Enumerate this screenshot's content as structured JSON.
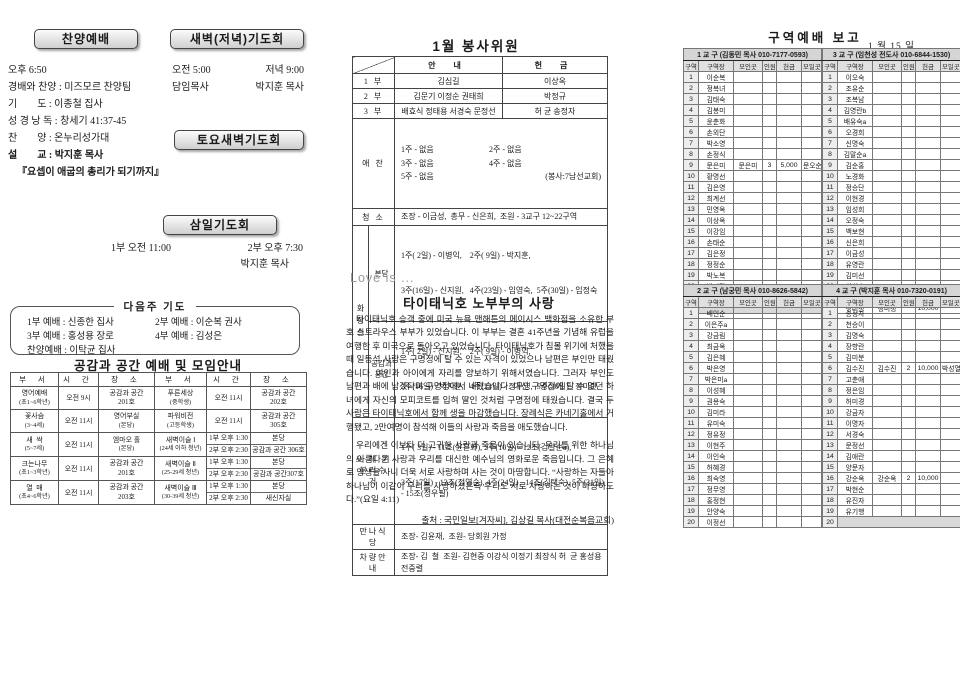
{
  "left": {
    "praise_worship": {
      "title": "찬양예배",
      "time": "오후 6:50",
      "lines": [
        "경배와 찬양 : 미즈모르 찬양팀",
        "기        도 : 이종철 집사",
        "성 경 낭 독 : 창세기 41:37-45",
        "찬        양 : 온누리성가대"
      ],
      "sermon_line": "설        교 : 박지훈 목사",
      "sermon_title": "『요셉이 애굽의 총리가 되기까지』"
    },
    "dawn_prayer": {
      "title": "새벽(저녁)기도회",
      "time_am": "오전 5:00",
      "time_pm": "저녁 9:00",
      "leader_am": "담임목사",
      "leader_pm": "박지훈 목사"
    },
    "saturday_dawn": {
      "title": "토요새벽기도회"
    },
    "wednesday_prayer": {
      "title": "삼일기도회",
      "part1": "1부 오전 11:00",
      "part2": "2부 오후 7:30",
      "preacher": "박지훈 목사"
    },
    "next_week_prayer": {
      "title": "다음주 기도",
      "items": [
        "1부 예배 : 신종한 집사",
        "2부 예배 : 이순복 권사",
        "3부 예배 : 홍성용 장로",
        "4부 예배 : 김성은",
        "찬양예배 : 이탁균 집사"
      ]
    },
    "meeting_table": {
      "title": "공감과 공간 예배 및 모임안내",
      "headers": [
        "부  서",
        "시  간",
        "장  소",
        "부  서",
        "시  간",
        "장  소"
      ],
      "rows": [
        {
          "l": [
            "영어예배",
            "(초1~6학년)"
          ],
          "lt": "오전 9시",
          "lp": [
            "공감과 공간",
            "201호"
          ],
          "r": [
            "푸른세상",
            "(중학생)"
          ],
          "split": false,
          "rt": "오전 11시",
          "rp": [
            "공감과 공간",
            "202호"
          ]
        },
        {
          "l": [
            "꽃사슴",
            "(3~4세)"
          ],
          "lt": "오전 11시",
          "lp": [
            "영어부실",
            "(본당)"
          ],
          "r": [
            "파워비전",
            "(고등학생)"
          ],
          "split": false,
          "rt": "오전 11시",
          "rp": [
            "공감과 공간",
            "305호"
          ]
        },
        {
          "l": [
            "새  싹",
            "(5~7세)"
          ],
          "lt": "오전 11시",
          "lp": [
            "엠마오 홀",
            "(본당)"
          ],
          "r": [
            "새벽이슬 Ⅰ",
            "(24세 이하 청년)"
          ],
          "split": true,
          "sub": [
            [
              "1부 오후 1:30",
              "본당"
            ],
            [
              "2부 오후 2:30",
              "공감과 공간 306호"
            ]
          ]
        },
        {
          "l": [
            "크는나무",
            "(초1~3학년)"
          ],
          "lt": "오전 11시",
          "lp": [
            "공감과 공간",
            "201호"
          ],
          "r": [
            "새벽이슬 Ⅱ",
            "(25-29세 청년)"
          ],
          "split": true,
          "sub": [
            [
              "1부 오후 1:30",
              "본당"
            ],
            [
              "2부 오후 2:30",
              "공감과 공간307호"
            ]
          ]
        },
        {
          "l": [
            "열  매",
            "(초4~6학년)"
          ],
          "lt": "오전 11시",
          "lp": [
            "공감과 공간",
            "203호"
          ],
          "r": [
            "새벽이슬 Ⅲ",
            "(30-39세 청년)"
          ],
          "split": true,
          "sub": [
            [
              "1부 오후 1:30",
              "본당"
            ],
            [
              "2부 오후 2:30",
              "새신자실"
            ]
          ]
        }
      ]
    }
  },
  "volunteers": {
    "title": "1월 봉사위원",
    "col_headers": [
      "안  내",
      "헌  금"
    ],
    "parts": [
      {
        "label": "1 부",
        "annae": "김심길",
        "heongeum": "이상옥"
      },
      {
        "label": "2 부",
        "annae": "김문기 이정순 권태희",
        "heongeum": "박정규"
      },
      {
        "label": "3 부",
        "annae": "배효식 정태용 서경숙 문정선",
        "heongeum": "허  균 송정자"
      }
    ],
    "aechan": {
      "label": "애 찬",
      "lines": [
        "1주 - 없음",
        "2주 - 없음",
        "3주 - 없음",
        "4주 - 없음",
        "5주 - 없음",
        "(봉사:7남선교회)"
      ]
    },
    "cleaning": {
      "label": "청 소",
      "text": "조장 - 이금성,  총무 - 신은희,  조원 - 3교구 12~22구역"
    },
    "restroom": {
      "label": "화장실",
      "rows": [
        {
          "sub": "본당",
          "lines": [
            "1주( 2일) - 이병익,    2주( 9일) - 박지훈,",
            "3주(16일) - 신지원,   4주(23일) - 임영숙,  5주(30일) - 임정숙"
          ]
        },
        {
          "sub": "공감과 공간",
          "lines": [
            "1주( 2일) - 신지원,    2주( 9일) - 이병익,",
            "3주(16일) - 박지훈,   4주(23일) - 정무영,  5주(30일) - 장미란"
          ]
        }
      ]
    },
    "recycling": {
      "label_1": "쓰 레 기",
      "label_2": "분리수거",
      "lines": [
        "1주( 3일) - 11조(윤은화), 2주(10일) - 12조(김말순a),",
        "3주(17일) - 13조(정영순), 4주(24일) - 14조(김택숙), 5주(31일) - 15조(정우필)"
      ]
    },
    "manna": {
      "label": "만나식당",
      "text": "조장- 김윤재,  조원- 당회원 가정"
    },
    "vehicle": {
      "label": "차량안내",
      "text": "조장- 김  철  조원- 김현중 이강식 이정기 최장식 허  균 홍성용 전중렬"
    }
  },
  "love_is": "Love is ...",
  "article": {
    "title": "타이태닉호 노부부의 사랑",
    "p1": "타이태닉호 승객 중에 미국 뉴욕 맨해튼의 메이시스 백화점을 소유한 부호 스트라우스 부부가 있었습니다. 이 부부는 결혼 41주년을 기념해 유럽을 여행한 후 미국으로 돌아오고 있었습니다. 타이태닉호가 침몰 위기에 처했을 때 일등석 사람은 구명정에 탈 수 있는 자격이 있었으나 남편은 부인만 태웠습니다. 여인과 아이에게 자리를 양보하기 위해서였습니다. 그러자 부인도 남편과 배에 남겠다며 구명정에서 내렸습니다. 대신 구명정에 탈 수 없던 하녀에게 자신의 모피코트를 입혀 딸인 것처럼 구명정에 태웠습니다. 결국 두 사람은 타이태닉호에서 함께 생을 마감했습니다. 장례식은 카네기홀에서 거행됐고, 2만여명이 참석해 이들의 사랑과 죽음을 애도했습니다.",
    "p2": "우리에겐 이보다 더 고귀한 사랑과 죽음이 있습니다. 우리를 위한 하나님의 아름다운 사랑과 우리를 대신한 예수님의 영화로운 죽음입니다. 그 은혜로 영생을 사니 더욱 서로 사랑하며 사는 것이 마땅합니다. “사랑하는 자들아 하나님이 이같이 우리를 사랑하셨은즉 우리도 서로 사랑하는 것이 마땅하도다.”(요일 4:11)",
    "source": "출처 : 국민일보[겨자씨], 김상길 목사(대전순복음교회)"
  },
  "report": {
    "title": "구역예배 보고",
    "date": "1 월 15 일",
    "col_headers": [
      "구역",
      "구역장",
      "모인곳",
      "인원",
      "헌금",
      "모일곳"
    ],
    "tables": [
      {
        "name": "1 교 구 (김동민 목사 010-7177-0593)",
        "filler": true,
        "rows": [
          [
            "1",
            "이순복",
            "",
            "",
            "",
            ""
          ],
          [
            "2",
            "정복녀",
            "",
            "",
            "",
            ""
          ],
          [
            "3",
            "김태숙",
            "",
            "",
            "",
            ""
          ],
          [
            "4",
            "김봉미",
            "",
            "",
            "",
            ""
          ],
          [
            "5",
            "윤춘화",
            "",
            "",
            "",
            ""
          ],
          [
            "6",
            "손외단",
            "",
            "",
            "",
            ""
          ],
          [
            "7",
            "박소영",
            "",
            "",
            "",
            ""
          ],
          [
            "8",
            "손정식",
            "",
            "",
            "",
            ""
          ],
          [
            "9",
            "문은미",
            "문은미",
            "3",
            "5,000",
            "문오순"
          ],
          [
            "10",
            "황명선",
            "",
            "",
            "",
            ""
          ],
          [
            "11",
            "김은영",
            "",
            "",
            "",
            ""
          ],
          [
            "12",
            "최계선",
            "",
            "",
            "",
            ""
          ],
          [
            "13",
            "민영옥",
            "",
            "",
            "",
            ""
          ],
          [
            "14",
            "이상옥",
            "",
            "",
            "",
            ""
          ],
          [
            "15",
            "이강임",
            "",
            "",
            "",
            ""
          ],
          [
            "16",
            "손태순",
            "",
            "",
            "",
            ""
          ],
          [
            "17",
            "김은정",
            "",
            "",
            "",
            ""
          ],
          [
            "18",
            "정정순",
            "",
            "",
            "",
            ""
          ],
          [
            "19",
            "박노복",
            "",
            "",
            "",
            ""
          ],
          [
            "20",
            "박미란",
            "",
            "",
            "",
            ""
          ]
        ]
      },
      {
        "name": "3 교 구 (임천성 전도사 010-6844-1530)",
        "rows": [
          [
            "1",
            "이오숙",
            "",
            "",
            "",
            ""
          ],
          [
            "2",
            "조유순",
            "",
            "",
            "",
            ""
          ],
          [
            "3",
            "조복남",
            "",
            "",
            "",
            ""
          ],
          [
            "4",
            "김영란b",
            "",
            "",
            "",
            ""
          ],
          [
            "5",
            "배유숙a",
            "",
            "",
            "",
            ""
          ],
          [
            "6",
            "오경희",
            "",
            "",
            "",
            ""
          ],
          [
            "7",
            "신명숙",
            "",
            "",
            "",
            ""
          ],
          [
            "8",
            "김말순a",
            "",
            "",
            "",
            ""
          ],
          [
            "9",
            "김순홍",
            "",
            "",
            "",
            ""
          ],
          [
            "10",
            "노경화",
            "",
            "",
            "",
            ""
          ],
          [
            "11",
            "정승단",
            "",
            "",
            "",
            ""
          ],
          [
            "12",
            "이현경",
            "",
            "",
            "",
            ""
          ],
          [
            "13",
            "임성희",
            "",
            "",
            "",
            ""
          ],
          [
            "14",
            "오정숙",
            "",
            "",
            "",
            ""
          ],
          [
            "15",
            "백보현",
            "",
            "",
            "",
            ""
          ],
          [
            "16",
            "신은희",
            "",
            "",
            "",
            ""
          ],
          [
            "17",
            "이금성",
            "",
            "",
            "",
            ""
          ],
          [
            "18",
            "유영란",
            "",
            "",
            "",
            ""
          ],
          [
            "19",
            "김미선",
            "",
            "",
            "",
            ""
          ],
          [
            "20",
            "최희숙",
            "",
            "",
            "",
            ""
          ],
          [
            "21",
            "박순복",
            "",
            "",
            "",
            ""
          ],
          [
            "22",
            "정미정",
            "정미정",
            "",
            "10,000",
            ""
          ]
        ]
      },
      {
        "name": "2 교 구 (남궁민 목사 010-8626-5842)",
        "rows": [
          [
            "1",
            "배인순",
            "",
            "",
            "",
            ""
          ],
          [
            "2",
            "이은주a",
            "",
            "",
            "",
            ""
          ],
          [
            "3",
            "강금림",
            "",
            "",
            "",
            ""
          ],
          [
            "4",
            "최금옥",
            "",
            "",
            "",
            ""
          ],
          [
            "5",
            "김은혜",
            "",
            "",
            "",
            ""
          ],
          [
            "6",
            "박은영",
            "",
            "",
            "",
            ""
          ],
          [
            "7",
            "박은미a",
            "",
            "",
            "",
            ""
          ],
          [
            "8",
            "이성혜",
            "",
            "",
            "",
            ""
          ],
          [
            "9",
            "권용숙",
            "",
            "",
            "",
            ""
          ],
          [
            "10",
            "김미라",
            "",
            "",
            "",
            ""
          ],
          [
            "11",
            "유미숙",
            "",
            "",
            "",
            ""
          ],
          [
            "12",
            "정유정",
            "",
            "",
            "",
            ""
          ],
          [
            "13",
            "이현주",
            "",
            "",
            "",
            ""
          ],
          [
            "14",
            "이인숙",
            "",
            "",
            "",
            ""
          ],
          [
            "15",
            "허혜경",
            "",
            "",
            "",
            ""
          ],
          [
            "16",
            "최숙영",
            "",
            "",
            "",
            ""
          ],
          [
            "17",
            "정무영",
            "",
            "",
            "",
            ""
          ],
          [
            "18",
            "홍정현",
            "",
            "",
            "",
            ""
          ],
          [
            "19",
            "안양숙",
            "",
            "",
            "",
            ""
          ],
          [
            "20",
            "이정선",
            "",
            "",
            "",
            ""
          ]
        ]
      },
      {
        "name": "4 교 구 (박지훈 목사 010-7320-0191)",
        "last_row_gray": true,
        "rows": [
          [
            "1",
            "송정자",
            "",
            "",
            "",
            ""
          ],
          [
            "2",
            "천승이",
            "",
            "",
            "",
            ""
          ],
          [
            "3",
            "김명숙",
            "",
            "",
            "",
            ""
          ],
          [
            "4",
            "장향란",
            "",
            "",
            "",
            ""
          ],
          [
            "5",
            "김미분",
            "",
            "",
            "",
            ""
          ],
          [
            "6",
            "김수진",
            "김수진",
            "2",
            "10,000",
            "박성열"
          ],
          [
            "7",
            "고춘애",
            "",
            "",
            "",
            ""
          ],
          [
            "8",
            "정은임",
            "",
            "",
            "",
            ""
          ],
          [
            "9",
            "허미경",
            "",
            "",
            "",
            ""
          ],
          [
            "10",
            "강금자",
            "",
            "",
            "",
            ""
          ],
          [
            "11",
            "이명자",
            "",
            "",
            "",
            ""
          ],
          [
            "12",
            "서경숙",
            "",
            "",
            "",
            ""
          ],
          [
            "13",
            "문정선",
            "",
            "",
            "",
            ""
          ],
          [
            "14",
            "김애란",
            "",
            "",
            "",
            ""
          ],
          [
            "15",
            "양문자",
            "",
            "",
            "",
            ""
          ],
          [
            "16",
            "강순옥",
            "강순옥",
            "2",
            "10,000",
            ""
          ],
          [
            "17",
            "박현순",
            "",
            "",
            "",
            ""
          ],
          [
            "18",
            "유진자",
            "",
            "",
            "",
            ""
          ],
          [
            "19",
            "유기행",
            "",
            "",
            "",
            ""
          ],
          [
            "20",
            "",
            "",
            "",
            "",
            ""
          ]
        ]
      }
    ]
  }
}
